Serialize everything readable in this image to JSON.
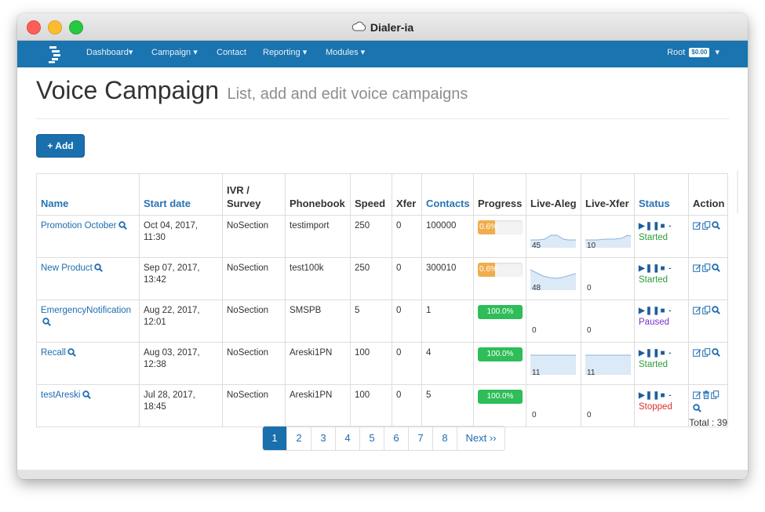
{
  "window": {
    "title": "Dialer-ia"
  },
  "navbar": {
    "items": [
      "Dashboard▾",
      "Campaign ▾",
      "Contact",
      "Reporting ▾",
      "Modules ▾"
    ],
    "user": "Root",
    "balance": "$0.00",
    "user_caret": "▾"
  },
  "page": {
    "title": "Voice Campaign",
    "subtitle": "List, add and edit voice campaigns",
    "add_label": "+ Add"
  },
  "table": {
    "columns": [
      "Name",
      "Start date",
      "IVR /\nSurvey",
      "Phonebook",
      "Speed",
      "Xfer",
      "Contacts",
      "Progress",
      "Live-Aleg",
      "Live-Xfer",
      "Status",
      "Action"
    ],
    "rows": [
      {
        "name": "Promotion October",
        "start_date": "Oct 04, 2017,\n11:30",
        "ivr": "NoSection",
        "phonebook": "testimport",
        "speed": "250",
        "xfer": "0",
        "contacts": "100000",
        "progress": 0.6,
        "progress_label": "0.6%",
        "live_aleg": "45",
        "live_xfer": "10",
        "status": "Started"
      },
      {
        "name": "New Product",
        "start_date": "Sep 07, 2017,\n13:42",
        "ivr": "NoSection",
        "phonebook": "test100k",
        "speed": "250",
        "xfer": "0",
        "contacts": "300010",
        "progress": 0.6,
        "progress_label": "0.6%",
        "live_aleg": "48",
        "live_xfer": "0",
        "status": "Started"
      },
      {
        "name": "EmergencyNotification",
        "start_date": "Aug 22, 2017,\n12:01",
        "ivr": "NoSection",
        "phonebook": "SMSPB",
        "speed": "5",
        "xfer": "0",
        "contacts": "1",
        "progress": 100,
        "progress_label": "100.0%",
        "live_aleg": "0",
        "live_xfer": "0",
        "status": "Paused"
      },
      {
        "name": "Recall",
        "start_date": "Aug 03, 2017,\n12:38",
        "ivr": "NoSection",
        "phonebook": "Areski1PN",
        "speed": "100",
        "xfer": "0",
        "contacts": "4",
        "progress": 100,
        "progress_label": "100.0%",
        "live_aleg": "11",
        "live_xfer": "11",
        "status": "Started"
      },
      {
        "name": "testAreski",
        "start_date": "Jul 28, 2017,\n18:45",
        "ivr": "NoSection",
        "phonebook": "Areski1PN",
        "speed": "100",
        "xfer": "0",
        "contacts": "5",
        "progress": 100,
        "progress_label": "100.0%",
        "live_aleg": "0",
        "live_xfer": "0",
        "status": "Stopped"
      }
    ],
    "status_controls": "▶❚❚■ -"
  },
  "pagination": {
    "pages": [
      "1",
      "2",
      "3",
      "4",
      "5",
      "6",
      "7",
      "8"
    ],
    "active": "1",
    "next_label": "Next ››"
  },
  "total_label": "Total : 39",
  "colors": {
    "navbar": "#1a74b0",
    "link": "#1d6cb1",
    "progress_low": "#f0ad4e",
    "progress_full": "#2ebd59",
    "status_started": "#2a9d3a",
    "status_paused": "#7a30c8",
    "status_stopped": "#d9312b"
  }
}
